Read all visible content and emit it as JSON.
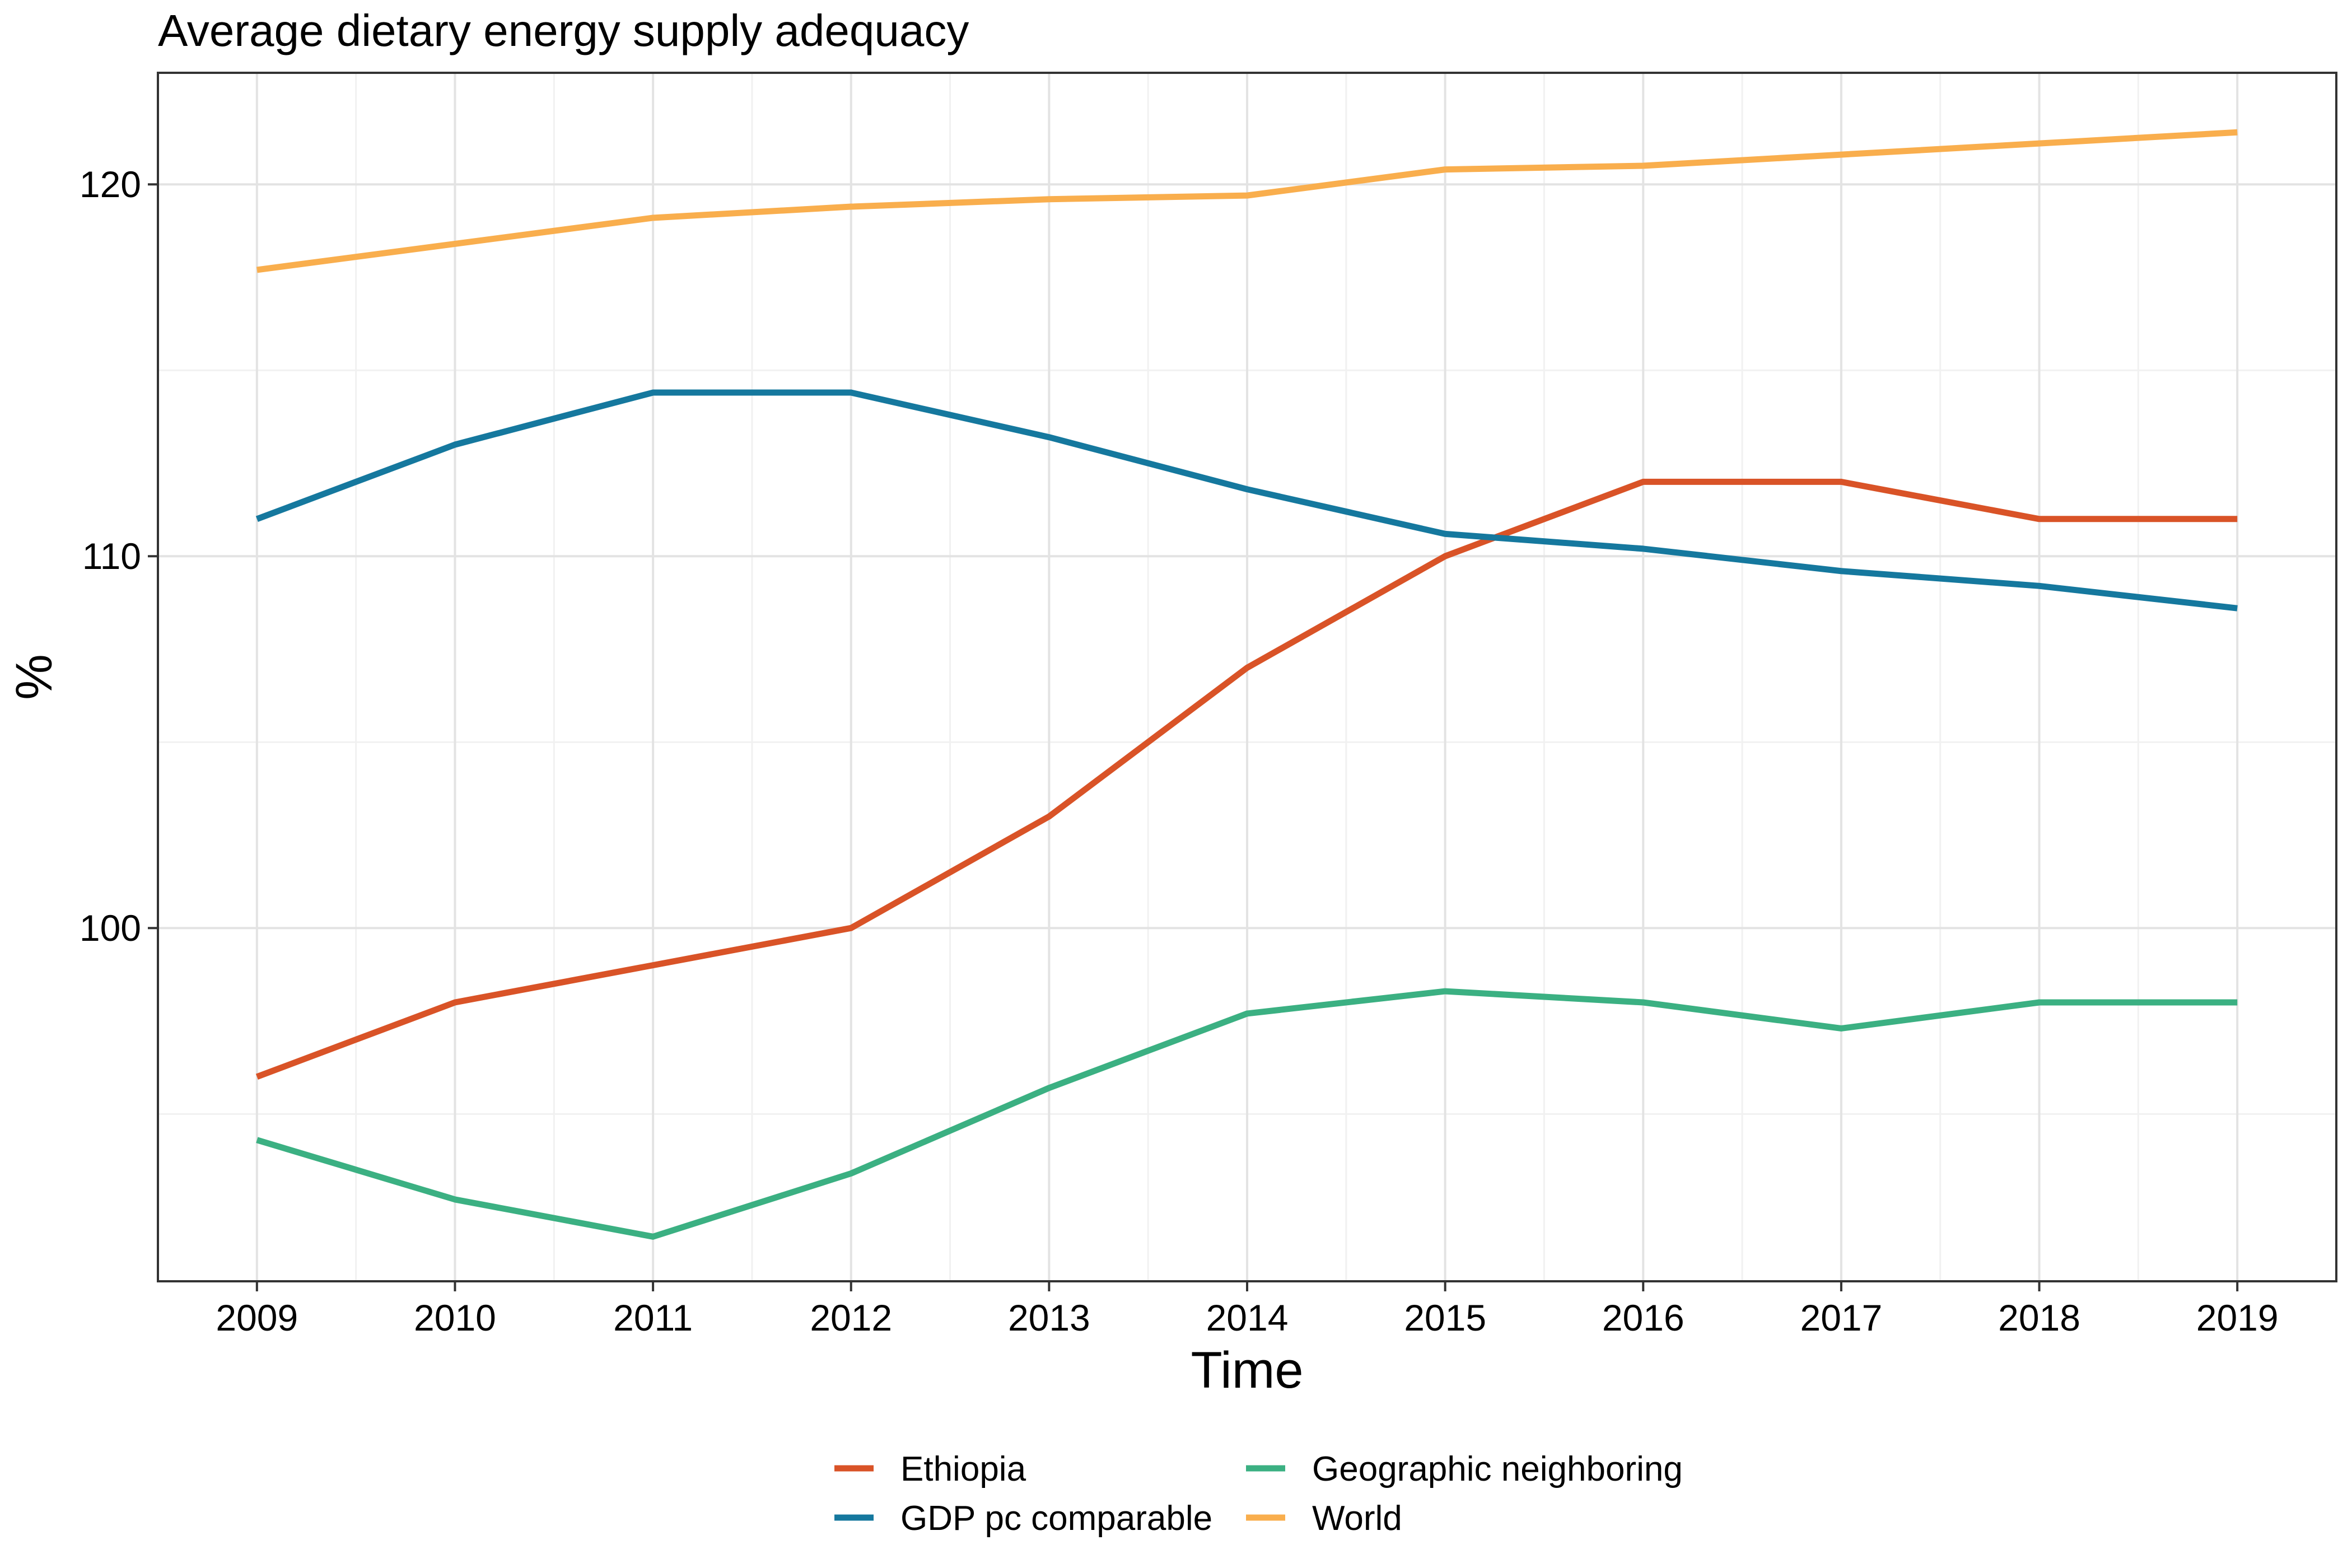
{
  "chart_data": {
    "type": "line",
    "title": "Average dietary energy supply adequacy",
    "xlabel": "Time",
    "ylabel": "%",
    "categories": [
      "2009",
      "2010",
      "2011",
      "2012",
      "2013",
      "2014",
      "2015",
      "2016",
      "2017",
      "2018",
      "2019"
    ],
    "x": [
      2009,
      2010,
      2011,
      2012,
      2013,
      2014,
      2015,
      2016,
      2017,
      2018,
      2019
    ],
    "xlim": [
      2008.5,
      2019.5
    ],
    "ylim": [
      90.5,
      123.0
    ],
    "yticks": [
      100,
      110,
      120
    ],
    "yticks_minor": [
      95,
      105,
      115
    ],
    "grid": true,
    "legend_position": "bottom",
    "series": [
      {
        "name": "Ethiopia",
        "color": "#D95327",
        "values": [
          96,
          98,
          99,
          100,
          103,
          107,
          110,
          112,
          112,
          111,
          111
        ]
      },
      {
        "name": "GDP pc comparable",
        "color": "#15789E",
        "values": [
          111.0,
          113.0,
          114.4,
          114.4,
          113.2,
          111.8,
          110.6,
          110.2,
          109.6,
          109.2,
          108.6
        ]
      },
      {
        "name": "Geographic neighboring",
        "color": "#3BB082",
        "values": [
          94.3,
          92.7,
          91.7,
          93.4,
          95.7,
          97.7,
          98.3,
          98.0,
          97.3,
          98.0,
          98.0
        ]
      },
      {
        "name": "World",
        "color": "#F9AE4D",
        "values": [
          117.7,
          118.4,
          119.1,
          119.4,
          119.6,
          119.7,
          120.4,
          120.5,
          120.8,
          121.1,
          121.4
        ]
      }
    ]
  }
}
